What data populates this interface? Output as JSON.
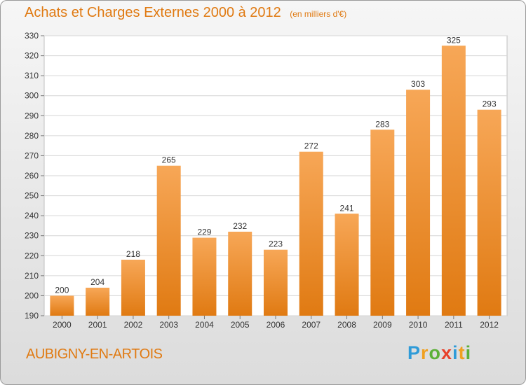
{
  "chart_data": {
    "type": "bar",
    "title": "Achats et Charges Externes 2000 à 2012",
    "unit": "(en milliers d'€)",
    "categories": [
      "2000",
      "2001",
      "2002",
      "2003",
      "2004",
      "2005",
      "2006",
      "2007",
      "2008",
      "2009",
      "2010",
      "2011",
      "2012"
    ],
    "values": [
      200,
      204,
      218,
      265,
      229,
      232,
      223,
      272,
      241,
      283,
      303,
      325,
      293
    ],
    "ylim": [
      190,
      330
    ],
    "yticks": [
      190,
      200,
      210,
      220,
      230,
      240,
      250,
      260,
      270,
      280,
      290,
      300,
      310,
      320,
      330
    ],
    "grid": true,
    "colors": {
      "bar_top": "#f7a757",
      "bar_bottom": "#e07a12",
      "title": "#e07a12"
    }
  },
  "footer": {
    "commune": "AUBIGNY-EN-ARTOIS",
    "brand_letters": [
      "P",
      "r",
      "o",
      "x",
      "i",
      "t",
      "i"
    ],
    "brand_colors": [
      "#2f9bd8",
      "#f0a020",
      "#5cb038",
      "#e8402a",
      "#2f9bd8",
      "#f0a020",
      "#5cb038"
    ]
  }
}
